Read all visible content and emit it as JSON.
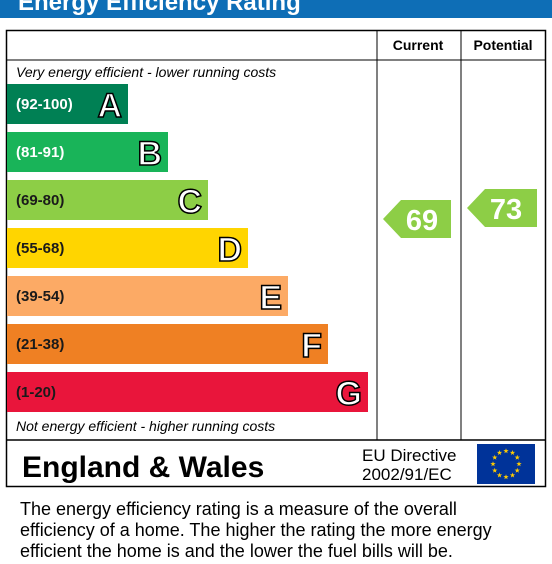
{
  "header": {
    "title": "Energy Efficiency Rating"
  },
  "table": {
    "columns": [
      "Current",
      "Potential"
    ],
    "top_note": "Very energy efficient - lower running costs",
    "bottom_note": "Not energy efficient - higher running costs",
    "bands": [
      {
        "range": "(92-100)",
        "letter": "A"
      },
      {
        "range": "(81-91)",
        "letter": "B"
      },
      {
        "range": "(69-80)",
        "letter": "C"
      },
      {
        "range": "(55-68)",
        "letter": "D"
      },
      {
        "range": "(39-54)",
        "letter": "E"
      },
      {
        "range": "(21-38)",
        "letter": "F"
      },
      {
        "range": "(1-20)",
        "letter": "G"
      }
    ],
    "current": "69",
    "potential": "73"
  },
  "footer": {
    "region": "England & Wales",
    "directive": [
      "EU Directive",
      "2002/91/EC"
    ]
  },
  "description": [
    "The energy efficiency rating is a measure of the overall",
    "efficiency of a home.  The higher the rating the more energy",
    "efficient the home is and the lower the fuel bills will be."
  ]
}
